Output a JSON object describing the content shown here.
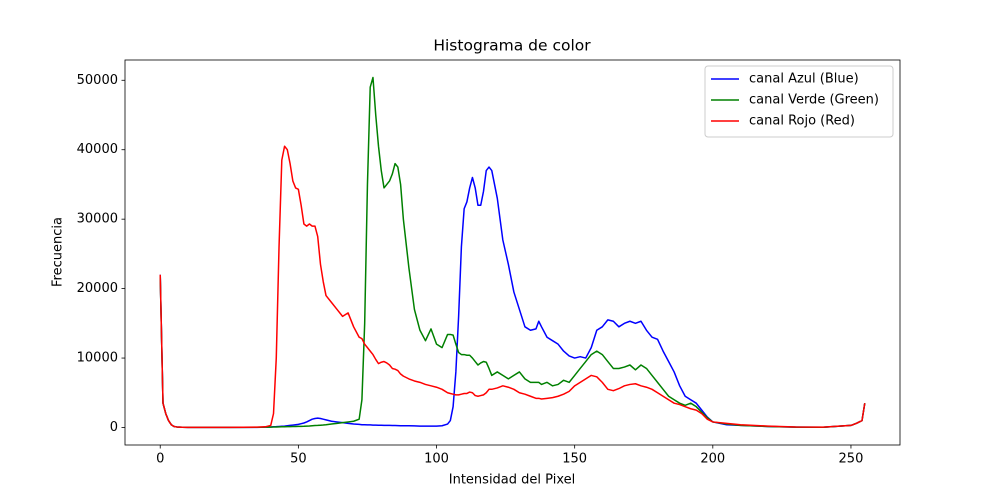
{
  "chart_data": {
    "type": "line",
    "title": "Histograma de color",
    "x_label": "Intensidad del Pixel",
    "y_label": "Frecuencia",
    "legend": "upper right",
    "grid": false,
    "xlim": [
      -12.75,
      267.75
    ],
    "ylim": [
      -2520,
      52920
    ],
    "xticks": [
      0,
      50,
      100,
      150,
      200,
      250
    ],
    "yticks": [
      0,
      10000,
      20000,
      30000,
      40000,
      50000
    ],
    "x": [
      0,
      1,
      2,
      3,
      4,
      5,
      6,
      8,
      10,
      15,
      20,
      25,
      30,
      35,
      38,
      40,
      41,
      42,
      43,
      44,
      45,
      46,
      47,
      48,
      49,
      50,
      51,
      52,
      53,
      54,
      55,
      56,
      57,
      58,
      59,
      60,
      62,
      64,
      66,
      68,
      70,
      72,
      73,
      74,
      75,
      76,
      77,
      78,
      79,
      80,
      81,
      82,
      83,
      84,
      85,
      86,
      87,
      88,
      90,
      92,
      94,
      96,
      98,
      100,
      102,
      104,
      105,
      106,
      107,
      108,
      109,
      110,
      111,
      112,
      113,
      114,
      115,
      116,
      117,
      118,
      119,
      120,
      122,
      124,
      126,
      128,
      130,
      132,
      134,
      136,
      137,
      138,
      140,
      142,
      144,
      146,
      148,
      150,
      152,
      154,
      156,
      158,
      160,
      162,
      164,
      166,
      168,
      170,
      172,
      174,
      176,
      178,
      180,
      182,
      184,
      186,
      188,
      190,
      192,
      194,
      196,
      198,
      200,
      205,
      210,
      220,
      230,
      240,
      250,
      252,
      254,
      255
    ],
    "series": [
      {
        "name": "canal Azul (Blue)",
        "color": "#0000ff",
        "values": [
          22000,
          3500,
          2000,
          1000,
          400,
          150,
          80,
          30,
          20,
          10,
          10,
          10,
          10,
          20,
          50,
          80,
          100,
          120,
          150,
          180,
          200,
          250,
          300,
          350,
          400,
          450,
          550,
          650,
          800,
          1000,
          1200,
          1300,
          1350,
          1300,
          1200,
          1100,
          900,
          800,
          700,
          600,
          500,
          450,
          400,
          400,
          380,
          370,
          350,
          340,
          330,
          320,
          300,
          300,
          300,
          290,
          280,
          270,
          260,
          250,
          250,
          230,
          200,
          200,
          200,
          200,
          250,
          500,
          1000,
          3000,
          8000,
          16000,
          26000,
          31500,
          32500,
          34500,
          36000,
          34500,
          32000,
          32000,
          34000,
          37000,
          37500,
          37000,
          33000,
          27000,
          23500,
          19500,
          17000,
          14500,
          14000,
          14200,
          15300,
          14500,
          13000,
          12500,
          12000,
          11000,
          10300,
          10000,
          10200,
          10000,
          11500,
          14000,
          14500,
          15500,
          15300,
          14500,
          15000,
          15300,
          15000,
          15300,
          14000,
          13000,
          12700,
          11000,
          9500,
          8000,
          6000,
          4500,
          4000,
          3500,
          2500,
          1500,
          800,
          400,
          300,
          150,
          50,
          30,
          300,
          600,
          1000,
          3500
        ]
      },
      {
        "name": "canal Verde (Green)",
        "color": "#008000",
        "values": [
          21800,
          3500,
          2000,
          1000,
          400,
          150,
          80,
          30,
          20,
          10,
          10,
          10,
          20,
          30,
          50,
          60,
          70,
          80,
          90,
          100,
          110,
          120,
          130,
          140,
          150,
          160,
          170,
          180,
          200,
          220,
          250,
          280,
          300,
          330,
          360,
          400,
          500,
          600,
          700,
          800,
          900,
          1200,
          4000,
          15000,
          35000,
          49000,
          50400,
          45000,
          40500,
          37000,
          34500,
          35000,
          35500,
          36500,
          38000,
          37500,
          35000,
          30000,
          23000,
          17000,
          14000,
          12500,
          14200,
          12000,
          11500,
          13400,
          13400,
          13300,
          12000,
          10800,
          10500,
          10500,
          10400,
          10400,
          10000,
          9500,
          9000,
          9300,
          9500,
          9400,
          8500,
          7500,
          8000,
          7500,
          7000,
          7500,
          8000,
          7000,
          6500,
          6500,
          6500,
          6200,
          6500,
          6000,
          6200,
          6800,
          6500,
          7500,
          8500,
          9500,
          10500,
          11000,
          10500,
          9500,
          8500,
          8500,
          8700,
          9000,
          8300,
          9000,
          8500,
          7500,
          6500,
          5500,
          4500,
          4000,
          3500,
          3200,
          3500,
          3000,
          2200,
          1400,
          800,
          500,
          300,
          150,
          50,
          30,
          300,
          600,
          1000,
          3500
        ]
      },
      {
        "name": "canal Rojo (Red)",
        "color": "#ff0000",
        "values": [
          22000,
          3500,
          2000,
          1000,
          400,
          150,
          80,
          30,
          20,
          10,
          10,
          20,
          30,
          50,
          100,
          300,
          2000,
          10000,
          26000,
          38500,
          40500,
          40000,
          38000,
          35500,
          34500,
          34300,
          32000,
          29300,
          29000,
          29300,
          29000,
          29000,
          27500,
          23500,
          21000,
          19000,
          18000,
          17000,
          16000,
          16500,
          14500,
          13000,
          12800,
          12000,
          11500,
          11000,
          10500,
          9800,
          9200,
          9400,
          9500,
          9300,
          9000,
          8500,
          8400,
          8200,
          7700,
          7400,
          7000,
          6700,
          6500,
          6200,
          6000,
          5800,
          5500,
          5000,
          4900,
          4800,
          4700,
          4700,
          4800,
          4900,
          4900,
          5100,
          5000,
          4600,
          4500,
          4600,
          4700,
          5000,
          5500,
          5500,
          5700,
          6000,
          5800,
          5500,
          5000,
          4800,
          4500,
          4200,
          4200,
          4100,
          4200,
          4300,
          4500,
          4800,
          5200,
          6000,
          6500,
          7000,
          7500,
          7300,
          6500,
          5500,
          5300,
          5600,
          6000,
          6200,
          6300,
          6000,
          5800,
          5500,
          5000,
          4500,
          4000,
          3500,
          3300,
          3000,
          2700,
          2500,
          2000,
          1200,
          800,
          600,
          400,
          200,
          80,
          50,
          300,
          600,
          1000,
          3500
        ]
      }
    ]
  }
}
